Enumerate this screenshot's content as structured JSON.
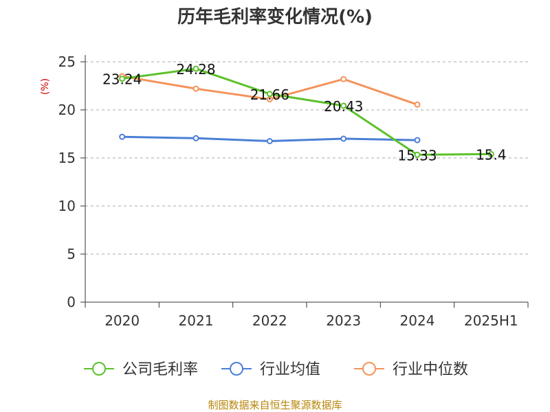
{
  "chart_data": {
    "type": "line",
    "title": "历年毛利率变化情况(%)",
    "ylabel": "(%)",
    "xlabel": "",
    "categories": [
      "2020",
      "2021",
      "2022",
      "2023",
      "2024",
      "2025H1"
    ],
    "ylim": [
      0,
      25
    ],
    "yticks": [
      0,
      5,
      10,
      15,
      20,
      25
    ],
    "grid": "horizontal-dashed",
    "legend_position": "bottom",
    "series": [
      {
        "name": "公司毛利率",
        "color": "#5cc12b",
        "values": [
          23.24,
          24.28,
          21.66,
          20.43,
          15.33,
          15.4
        ],
        "labels": [
          "23.24",
          "24.28",
          "21.66",
          "20.43",
          "15.33",
          "15.4"
        ]
      },
      {
        "name": "行业均值",
        "color": "#4a7fd6",
        "values": [
          17.2,
          17.05,
          16.75,
          17.0,
          16.85,
          null
        ]
      },
      {
        "name": "行业中位数",
        "color": "#f5925a",
        "values": [
          23.5,
          22.2,
          21.1,
          23.2,
          20.55,
          null
        ]
      }
    ]
  },
  "footer": {
    "source": "制图数据来自恒生聚源数据库"
  }
}
